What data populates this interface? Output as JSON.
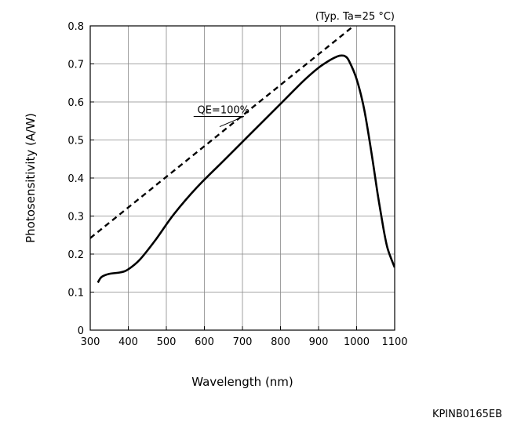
{
  "chart_data": {
    "type": "line",
    "title": "",
    "condition_note": "(Typ. Ta=25 °C)",
    "xlabel": "Wavelength (nm)",
    "ylabel": "Photosensitivity (A/W)",
    "xlim": [
      300,
      1100
    ],
    "ylim": [
      0,
      0.8
    ],
    "xticks": [
      300,
      400,
      500,
      600,
      700,
      800,
      900,
      1000,
      1100
    ],
    "yticks": [
      0,
      0.1,
      0.2,
      0.3,
      0.4,
      0.5,
      0.6,
      0.7,
      0.8
    ],
    "ytick_labels": [
      "0",
      "0.1",
      "0.2",
      "0.3",
      "0.4",
      "0.5",
      "0.6",
      "0.7",
      "0.8"
    ],
    "grid": true,
    "series": [
      {
        "name": "",
        "style": "solid",
        "x": [
          320,
          330,
          350,
          380,
          400,
          430,
          470,
          520,
          580,
          650,
          720,
          800,
          860,
          900,
          930,
          950,
          960,
          970,
          980,
          1000,
          1020,
          1040,
          1055,
          1070,
          1080,
          1090,
          1100
        ],
        "y": [
          0.125,
          0.14,
          0.148,
          0.152,
          0.16,
          0.185,
          0.235,
          0.305,
          0.375,
          0.445,
          0.515,
          0.595,
          0.655,
          0.69,
          0.71,
          0.72,
          0.722,
          0.72,
          0.708,
          0.66,
          0.58,
          0.46,
          0.36,
          0.27,
          0.22,
          0.19,
          0.165
        ]
      },
      {
        "name": "QE=100%",
        "style": "dashed",
        "x": [
          300,
          1000
        ],
        "y": [
          0.242,
          0.806
        ]
      }
    ],
    "annotations": [
      {
        "text": "QE=100%",
        "x": 650,
        "y": 0.57,
        "points_to": {
          "x": 640,
          "y": 0.535
        }
      }
    ]
  },
  "figure_code": "KPINB0165EB"
}
